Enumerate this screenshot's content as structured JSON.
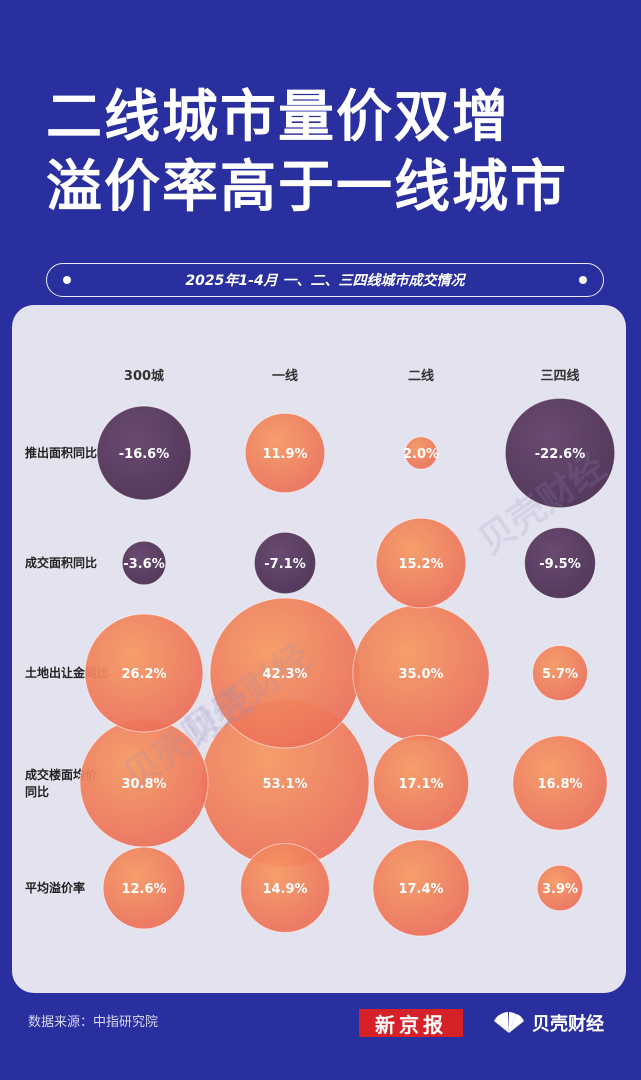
{
  "header": {
    "title_line1": "二线城市量价双增",
    "title_line2": "溢价率高于一线城市",
    "subtitle": "2025年1-4月 一、二、三四线城市成交情况"
  },
  "colors": {
    "background": "#2A2FA0",
    "panel": "#E3E2EF",
    "bubble_negative": "#5B3F66",
    "bubble_positive": "#F0855A"
  },
  "chart_data": {
    "type": "bubble-matrix",
    "columns": [
      "300城",
      "一线",
      "二线",
      "三四线"
    ],
    "rows": [
      {
        "label": "推出面积同比",
        "values": [
          -16.6,
          11.9,
          2.0,
          -22.6
        ],
        "display": [
          "-16.6%",
          "11.9%",
          "2.0%",
          "-22.6%"
        ]
      },
      {
        "label": "成交面积同比",
        "values": [
          -3.6,
          -7.1,
          15.2,
          -9.5
        ],
        "display": [
          "-3.6%",
          "-7.1%",
          "15.2%",
          "-9.5%"
        ]
      },
      {
        "label": "土地出让金同比",
        "values": [
          26.2,
          42.3,
          35.0,
          5.7
        ],
        "display": [
          "26.2%",
          "42.3%",
          "35.0%",
          "5.7%"
        ]
      },
      {
        "label": "成交楼面均价同比",
        "values": [
          30.8,
          53.1,
          17.1,
          16.8
        ],
        "display": [
          "30.8%",
          "53.1%",
          "17.1%",
          "16.8%"
        ]
      },
      {
        "label": "平均溢价率",
        "values": [
          12.6,
          14.9,
          17.4,
          3.9
        ],
        "display": [
          "12.6%",
          "14.9%",
          "17.4%",
          "3.9%"
        ]
      }
    ],
    "unit": "%"
  },
  "watermark": "贝壳财经",
  "footer": {
    "source": "数据来源：中指研究院",
    "logo_xinjingbao": "新京报",
    "logo_beike": "贝壳财经"
  }
}
